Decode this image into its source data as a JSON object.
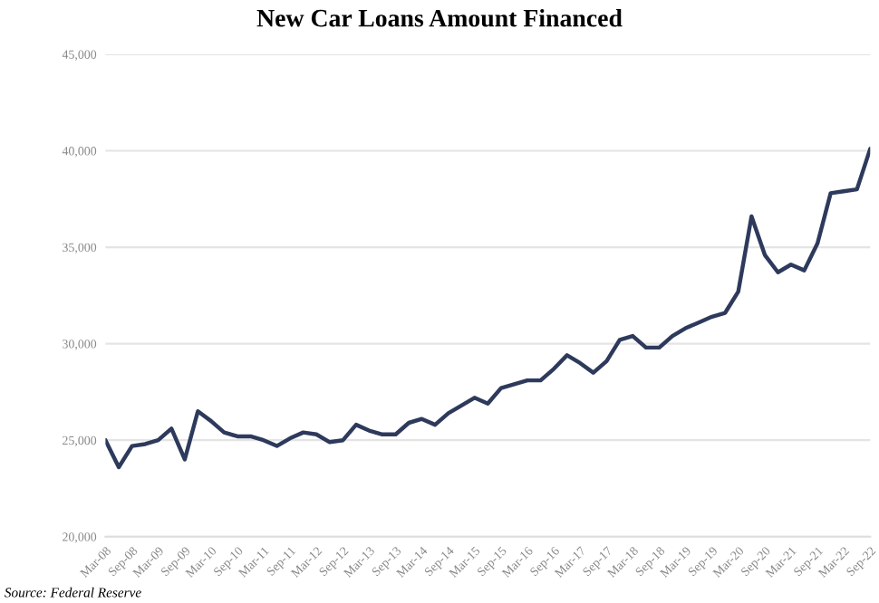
{
  "chart_data": {
    "type": "line",
    "title": "New Car Loans Amount Financed",
    "x": [
      "2008-03",
      "2008-06",
      "2008-09",
      "2008-12",
      "2009-03",
      "2009-06",
      "2009-09",
      "2009-12",
      "2010-03",
      "2010-06",
      "2010-09",
      "2010-12",
      "2011-03",
      "2011-06",
      "2011-09",
      "2011-12",
      "2012-03",
      "2012-06",
      "2012-09",
      "2012-12",
      "2013-03",
      "2013-06",
      "2013-09",
      "2013-12",
      "2014-03",
      "2014-06",
      "2014-09",
      "2014-12",
      "2015-03",
      "2015-06",
      "2015-09",
      "2015-12",
      "2016-03",
      "2016-06",
      "2016-09",
      "2016-12",
      "2017-03",
      "2017-06",
      "2017-09",
      "2017-12",
      "2018-03",
      "2018-06",
      "2018-09",
      "2018-12",
      "2019-03",
      "2019-06",
      "2019-09",
      "2019-12",
      "2020-03",
      "2020-06",
      "2020-09",
      "2020-12",
      "2021-03",
      "2021-06",
      "2021-09",
      "2021-12",
      "2022-03",
      "2022-06",
      "2022-09"
    ],
    "series": [
      {
        "color": "#2e3a5c",
        "values": [
          25000,
          23600,
          24700,
          24800,
          25000,
          25600,
          24000,
          26500,
          26000,
          25400,
          25200,
          25200,
          25000,
          24700,
          25100,
          25400,
          25300,
          24900,
          25000,
          25800,
          25500,
          25300,
          25300,
          25900,
          26100,
          25800,
          26400,
          26800,
          27200,
          26900,
          27700,
          27900,
          28100,
          28100,
          28700,
          29400,
          29000,
          28500,
          29100,
          30200,
          30400,
          29800,
          29800,
          30400,
          30800,
          31100,
          31400,
          31600,
          32700,
          36600,
          34600,
          33700,
          34100,
          33800,
          35200,
          37800,
          37900,
          38000,
          40100
        ]
      }
    ],
    "ylim": [
      20000,
      45000
    ],
    "yticks": [
      {
        "value": 20000,
        "label": "20,000"
      },
      {
        "value": 25000,
        "label": "25,000"
      },
      {
        "value": 30000,
        "label": "30,000"
      },
      {
        "value": 35000,
        "label": "35,000"
      },
      {
        "value": 40000,
        "label": "40,000"
      },
      {
        "value": 45000,
        "label": "45,000"
      }
    ],
    "xlim": [
      "2008-03",
      "2022-09"
    ],
    "xticks": [
      {
        "value": "2008-03",
        "label": "Mar-08"
      },
      {
        "value": "2008-09",
        "label": "Sep-08"
      },
      {
        "value": "2009-03",
        "label": "Mar-09"
      },
      {
        "value": "2009-09",
        "label": "Sep-09"
      },
      {
        "value": "2010-03",
        "label": "Mar-10"
      },
      {
        "value": "2010-09",
        "label": "Sep-10"
      },
      {
        "value": "2011-03",
        "label": "Mar-11"
      },
      {
        "value": "2011-09",
        "label": "Sep-11"
      },
      {
        "value": "2012-03",
        "label": "Mar-12"
      },
      {
        "value": "2012-09",
        "label": "Sep-12"
      },
      {
        "value": "2013-03",
        "label": "Mar-13"
      },
      {
        "value": "2013-09",
        "label": "Sep-13"
      },
      {
        "value": "2014-03",
        "label": "Mar-14"
      },
      {
        "value": "2014-09",
        "label": "Sep-14"
      },
      {
        "value": "2015-03",
        "label": "Mar-15"
      },
      {
        "value": "2015-09",
        "label": "Sep-15"
      },
      {
        "value": "2016-03",
        "label": "Mar-16"
      },
      {
        "value": "2016-09",
        "label": "Sep-16"
      },
      {
        "value": "2017-03",
        "label": "Mar-17"
      },
      {
        "value": "2017-09",
        "label": "Sep-17"
      },
      {
        "value": "2018-03",
        "label": "Mar-18"
      },
      {
        "value": "2018-09",
        "label": "Sep-18"
      },
      {
        "value": "2019-03",
        "label": "Mar-19"
      },
      {
        "value": "2019-09",
        "label": "Sep-19"
      },
      {
        "value": "2020-03",
        "label": "Mar-20"
      },
      {
        "value": "2020-09",
        "label": "Sep-20"
      },
      {
        "value": "2021-03",
        "label": "Mar-21"
      },
      {
        "value": "2021-09",
        "label": "Sep-21"
      },
      {
        "value": "2022-03",
        "label": "Mar-22"
      },
      {
        "value": "2022-09",
        "label": "Sep-22"
      }
    ],
    "grid": "y",
    "annotations": [
      "Source: Federal Reserve"
    ]
  }
}
